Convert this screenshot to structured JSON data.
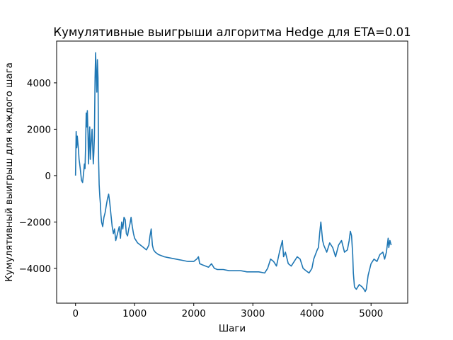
{
  "chart_data": {
    "type": "line",
    "title": "Кумулятивные выигрыши алгоритма Hedge для ETA=0.01",
    "xlabel": "Шаги",
    "ylabel": "Кумулятивный выигрыш для каждого шага",
    "xlim": [
      -320,
      5620
    ],
    "ylim": [
      -5500,
      5800
    ],
    "xticks": [
      0,
      1000,
      2000,
      3000,
      4000,
      5000
    ],
    "xtick_labels": [
      "0",
      "1000",
      "2000",
      "3000",
      "4000",
      "5000"
    ],
    "yticks": [
      -4000,
      -2000,
      0,
      2000,
      4000
    ],
    "ytick_labels": [
      "−4000",
      "−2000",
      "0",
      "2000",
      "4000"
    ],
    "grid": false,
    "line_color": "#1f77b4",
    "series": [
      {
        "x": [
          0,
          10,
          20,
          30,
          50,
          60,
          70,
          80,
          100,
          120,
          140,
          150,
          160,
          170,
          180,
          190,
          200,
          210,
          220,
          230,
          240,
          250,
          260,
          280,
          300,
          310,
          320,
          330,
          340,
          350,
          360,
          370,
          380,
          390,
          400,
          410,
          420,
          430,
          440,
          460,
          480,
          500,
          520,
          540,
          560,
          580,
          600,
          620,
          640,
          660,
          680,
          700,
          720,
          740,
          760,
          780,
          800,
          820,
          840,
          860,
          880,
          900,
          920,
          940,
          960,
          980,
          1000,
          1050,
          1100,
          1150,
          1200,
          1240,
          1260,
          1280,
          1300,
          1320,
          1350,
          1400,
          1500,
          1600,
          1700,
          1800,
          1900,
          2000,
          2050,
          2080,
          2100,
          2150,
          2200,
          2250,
          2300,
          2350,
          2400,
          2500,
          2600,
          2700,
          2800,
          2900,
          3000,
          3100,
          3200,
          3250,
          3300,
          3350,
          3400,
          3450,
          3480,
          3500,
          3520,
          3550,
          3600,
          3650,
          3700,
          3750,
          3800,
          3850,
          3900,
          3950,
          4000,
          4030,
          4060,
          4090,
          4110,
          4130,
          4150,
          4180,
          4200,
          4250,
          4300,
          4350,
          4400,
          4450,
          4500,
          4550,
          4600,
          4630,
          4650,
          4670,
          4690,
          4700,
          4720,
          4750,
          4800,
          4850,
          4880,
          4900,
          4920,
          4950,
          5000,
          5050,
          5100,
          5150,
          5200,
          5230,
          5260,
          5290,
          5300,
          5320,
          5340
        ],
        "y": [
          0,
          1900,
          1200,
          1700,
          1100,
          700,
          500,
          300,
          -200,
          -300,
          200,
          500,
          300,
          1200,
          2700,
          2100,
          2800,
          1800,
          500,
          1500,
          2100,
          700,
          1200,
          2000,
          500,
          1000,
          1700,
          4200,
          5300,
          4300,
          3600,
          5000,
          4200,
          700,
          -400,
          -900,
          -1200,
          -1700,
          -2000,
          -2200,
          -1800,
          -1600,
          -1300,
          -1000,
          -800,
          -1200,
          -1700,
          -2200,
          -2500,
          -2300,
          -2800,
          -2600,
          -2400,
          -2200,
          -2700,
          -2000,
          -2300,
          -1800,
          -1900,
          -2500,
          -2600,
          -2300,
          -2100,
          -1800,
          -2200,
          -2500,
          -2700,
          -2900,
          -3000,
          -3100,
          -3200,
          -3000,
          -2600,
          -2300,
          -3000,
          -3200,
          -3300,
          -3400,
          -3500,
          -3550,
          -3600,
          -3650,
          -3700,
          -3700,
          -3600,
          -3500,
          -3800,
          -3850,
          -3900,
          -3950,
          -3800,
          -4000,
          -4050,
          -4050,
          -4100,
          -4100,
          -4100,
          -4150,
          -4150,
          -4150,
          -4200,
          -4000,
          -3600,
          -3700,
          -3900,
          -3300,
          -3000,
          -2800,
          -3500,
          -3300,
          -3800,
          -3900,
          -3700,
          -3500,
          -3600,
          -4000,
          -4100,
          -4200,
          -4000,
          -3600,
          -3400,
          -3200,
          -3100,
          -2500,
          -2000,
          -2800,
          -3000,
          -3300,
          -2900,
          -3100,
          -3500,
          -3000,
          -2800,
          -3300,
          -3200,
          -2800,
          -2400,
          -2600,
          -3400,
          -4200,
          -4800,
          -4900,
          -4700,
          -4800,
          -4900,
          -5000,
          -4900,
          -4300,
          -3800,
          -3600,
          -3700,
          -3400,
          -3300,
          -3600,
          -3300,
          -2700,
          -3100,
          -2800,
          -3000
        ]
      }
    ]
  }
}
